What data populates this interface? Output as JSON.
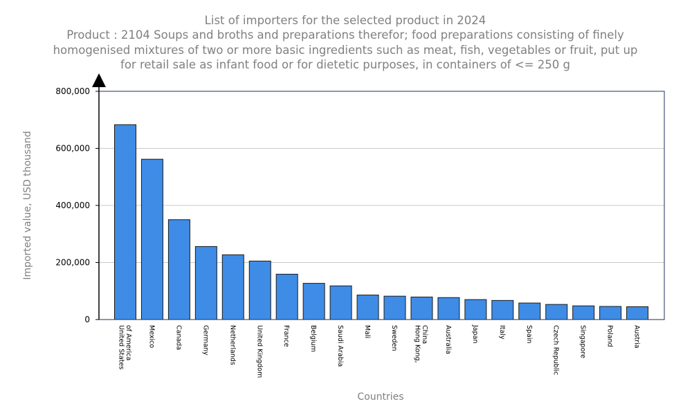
{
  "chart_data": {
    "type": "bar",
    "title": "List of importers for the selected product in 2024",
    "subtitle_lines": [
      "Product : 2104 Soups and broths and preparations therefor; food preparations consisting of finely",
      "homogenised mixtures of two or more basic ingredients such as meat, fish, vegetables or fruit, put up",
      "for retail sale as infant food or for dietetic purposes, in containers of <= 250 g"
    ],
    "xlabel": "Countries",
    "ylabel": "Imported value, USD thousand",
    "ylim": [
      0,
      800000
    ],
    "yticks": [
      0,
      200000,
      400000,
      600000,
      800000
    ],
    "ytick_labels": [
      "0",
      "200,000",
      "400,000",
      "600,000",
      "800,000"
    ],
    "grid": true,
    "bar_color": "#3e8ce6",
    "categories": [
      [
        "United States",
        "of America"
      ],
      [
        "Mexico"
      ],
      [
        "Canada"
      ],
      [
        "Germany"
      ],
      [
        "Netherlands"
      ],
      [
        "United Kingdom"
      ],
      [
        "France"
      ],
      [
        "Belgium"
      ],
      [
        "Saudi Arabia"
      ],
      [
        "Mali"
      ],
      [
        "Sweden"
      ],
      [
        "Hong Kong,",
        "China"
      ],
      [
        "Australia"
      ],
      [
        "Japan"
      ],
      [
        "Italy"
      ],
      [
        "Spain"
      ],
      [
        "Czech Republic"
      ],
      [
        "Singapore"
      ],
      [
        "Poland"
      ],
      [
        "Austria"
      ]
    ],
    "values": [
      683000,
      562000,
      350000,
      256000,
      227000,
      205000,
      159000,
      127000,
      118000,
      86000,
      82000,
      79000,
      77000,
      70000,
      67000,
      58000,
      53000,
      48000,
      46000,
      45000
    ]
  }
}
